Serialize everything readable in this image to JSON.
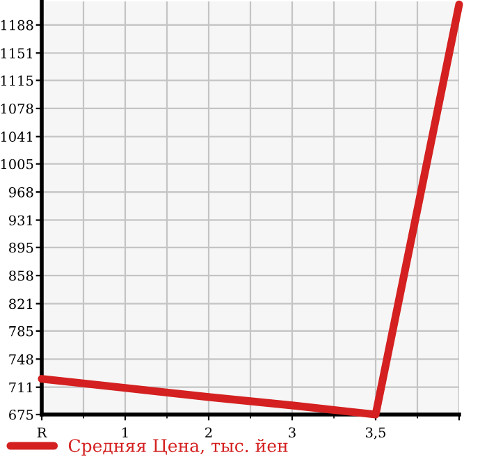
{
  "chart_data": {
    "type": "line",
    "categories": [
      "R",
      "1",
      "2",
      "3",
      "3,5",
      null
    ],
    "series": [
      {
        "name": "Средняя Цена, тыс. йен",
        "color": "#d42020",
        "values": [
          722,
          710,
          698,
          687,
          675,
          1215
        ]
      }
    ],
    "ylim": [
      675,
      1219
    ],
    "yticks": [
      675,
      711,
      748,
      785,
      821,
      858,
      895,
      931,
      968,
      1005,
      1041,
      1078,
      1115,
      1151,
      1188
    ],
    "grid": true,
    "legend": "bottom left",
    "marker": "none",
    "line_style": "solid"
  }
}
